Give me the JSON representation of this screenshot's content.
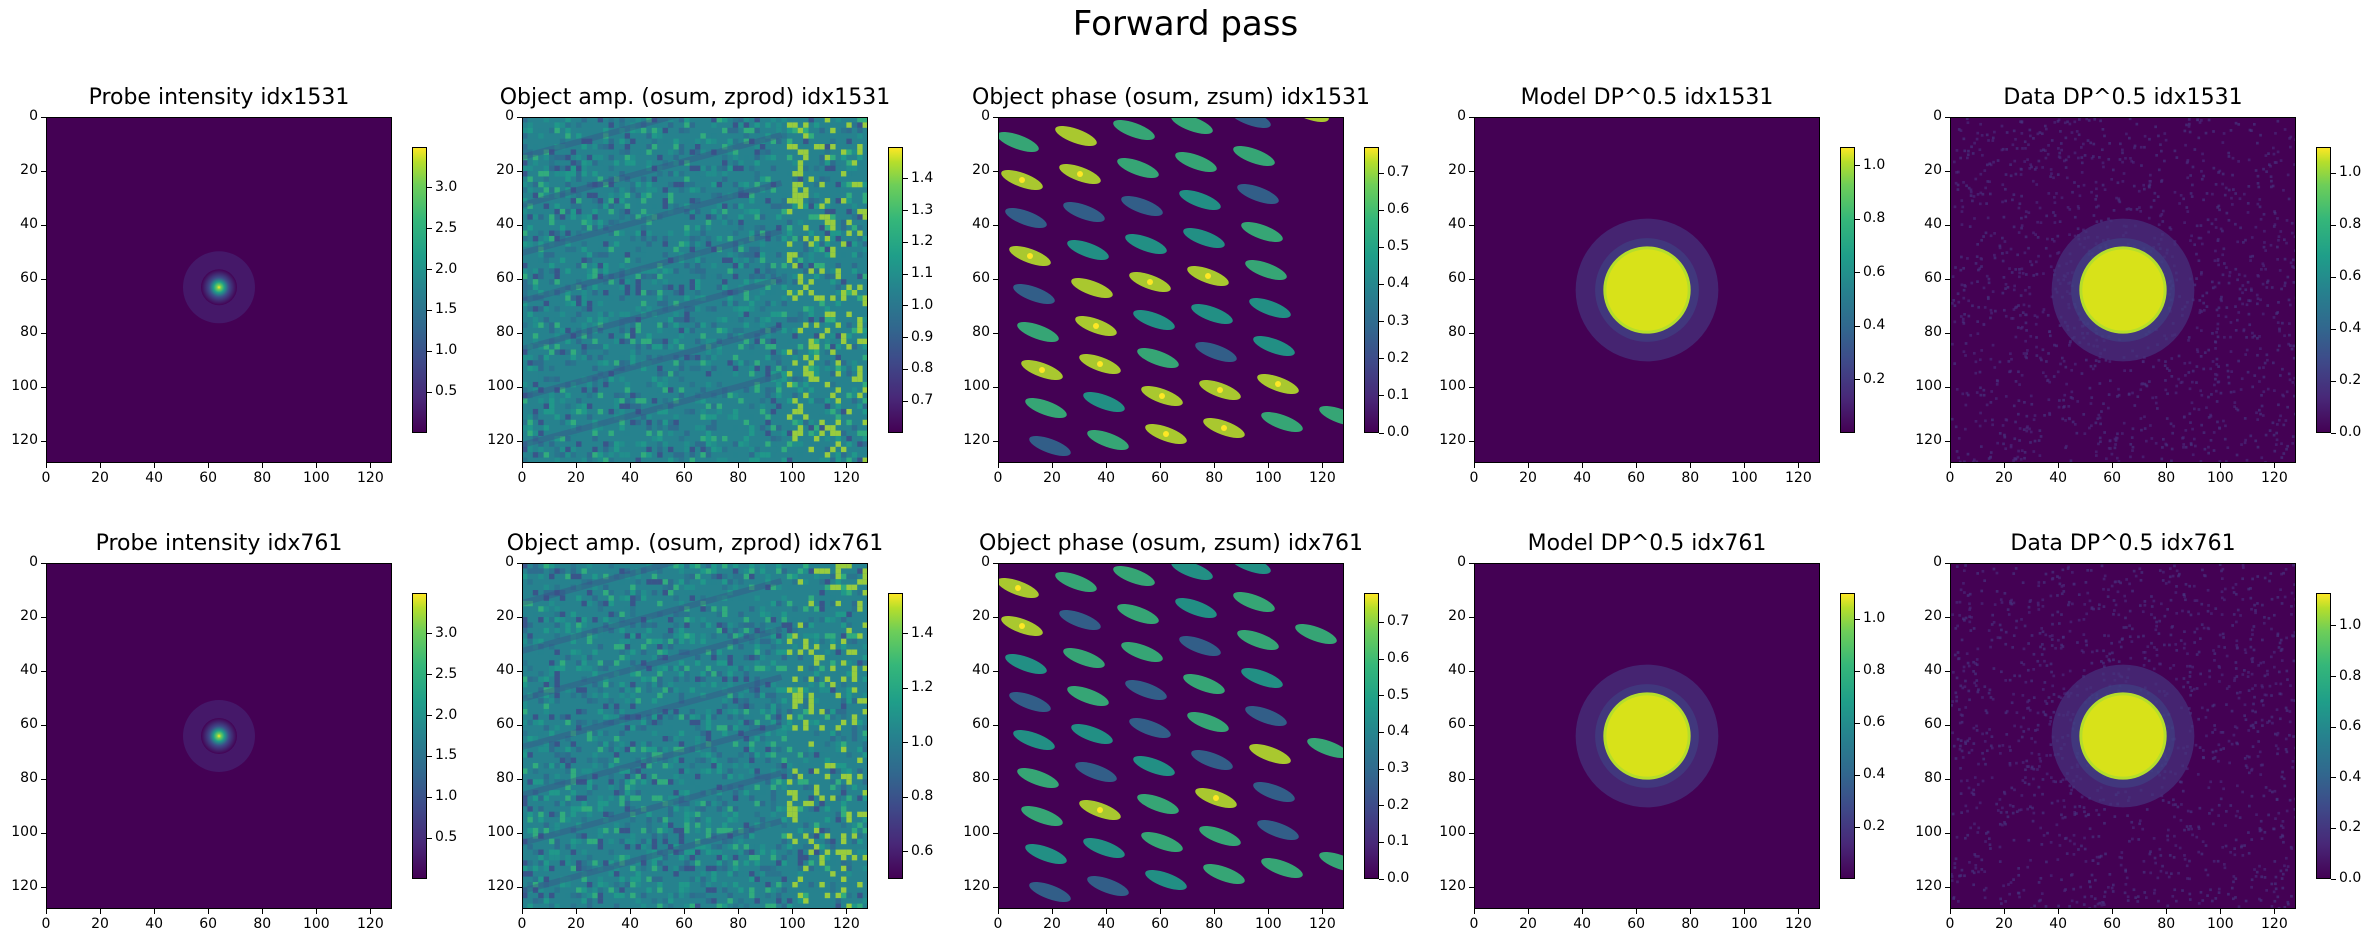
{
  "figure": {
    "suptitle": "Forward pass"
  },
  "colormap": [
    "#440154",
    "#482878",
    "#3e4a89",
    "#31688e",
    "#26828e",
    "#1f9e89",
    "#35b779",
    "#6ece58",
    "#b5de2b",
    "#fde725"
  ],
  "chart_data": [
    {
      "type": "heatmap",
      "kind": "probe",
      "title": "Probe intensity idx1531",
      "xticks": [
        "0",
        "20",
        "40",
        "60",
        "80",
        "100",
        "120"
      ],
      "yticks": [
        "0",
        "20",
        "40",
        "60",
        "80",
        "100",
        "120"
      ],
      "extent": [
        0,
        128
      ],
      "peak_center": [
        64,
        63
      ],
      "vmin": 0.0,
      "vmax": 3.5,
      "colorbar_ticks": [
        "0.5",
        "1.0",
        "1.5",
        "2.0",
        "2.5",
        "3.0"
      ],
      "colorbar_values": [
        0.5,
        1.0,
        1.5,
        2.0,
        2.5,
        3.0
      ]
    },
    {
      "type": "heatmap",
      "kind": "amp",
      "title": "Object amp. (osum, zprod) idx1531",
      "xticks": [
        "0",
        "20",
        "40",
        "60",
        "80",
        "100",
        "120"
      ],
      "yticks": [
        "0",
        "20",
        "40",
        "60",
        "80",
        "100",
        "120"
      ],
      "extent": [
        0,
        128
      ],
      "vmin": 0.6,
      "vmax": 1.5,
      "colorbar_ticks": [
        "0.7",
        "0.8",
        "0.9",
        "1.0",
        "1.1",
        "1.2",
        "1.3",
        "1.4"
      ],
      "colorbar_values": [
        0.7,
        0.8,
        0.9,
        1.0,
        1.1,
        1.2,
        1.3,
        1.4
      ]
    },
    {
      "type": "heatmap",
      "kind": "phase",
      "title": "Object phase (osum, zsum) idx1531",
      "xticks": [
        "0",
        "20",
        "40",
        "60",
        "80",
        "100",
        "120"
      ],
      "yticks": [
        "0",
        "20",
        "40",
        "60",
        "80",
        "100",
        "120"
      ],
      "extent": [
        0,
        128
      ],
      "vmin": 0.0,
      "vmax": 0.77,
      "colorbar_ticks": [
        "0.0",
        "0.1",
        "0.2",
        "0.3",
        "0.4",
        "0.5",
        "0.6",
        "0.7"
      ],
      "colorbar_values": [
        0.0,
        0.1,
        0.2,
        0.3,
        0.4,
        0.5,
        0.6,
        0.7
      ]
    },
    {
      "type": "heatmap",
      "kind": "dp_model",
      "title": "Model DP^0.5 idx1531",
      "xticks": [
        "0",
        "20",
        "40",
        "60",
        "80",
        "100",
        "120"
      ],
      "yticks": [
        "0",
        "20",
        "40",
        "60",
        "80",
        "100",
        "120"
      ],
      "extent": [
        0,
        128
      ],
      "disk_center": [
        64,
        64
      ],
      "disk_radius": 12,
      "vmin": 0.0,
      "vmax": 1.07,
      "colorbar_ticks": [
        "0.2",
        "0.4",
        "0.6",
        "0.8",
        "1.0"
      ],
      "colorbar_values": [
        0.2,
        0.4,
        0.6,
        0.8,
        1.0
      ]
    },
    {
      "type": "heatmap",
      "kind": "dp_data",
      "title": "Data DP^0.5 idx1531",
      "xticks": [
        "0",
        "20",
        "40",
        "60",
        "80",
        "100",
        "120"
      ],
      "yticks": [
        "0",
        "20",
        "40",
        "60",
        "80",
        "100",
        "120"
      ],
      "extent": [
        0,
        128
      ],
      "disk_center": [
        64,
        64
      ],
      "disk_radius": 12,
      "vmin": 0.0,
      "vmax": 1.1,
      "colorbar_ticks": [
        "0.0",
        "0.2",
        "0.4",
        "0.6",
        "0.8",
        "1.0"
      ],
      "colorbar_values": [
        0.0,
        0.2,
        0.4,
        0.6,
        0.8,
        1.0
      ]
    },
    {
      "type": "heatmap",
      "kind": "probe",
      "title": "Probe intensity idx761",
      "xticks": [
        "0",
        "20",
        "40",
        "60",
        "80",
        "100",
        "120"
      ],
      "yticks": [
        "0",
        "20",
        "40",
        "60",
        "80",
        "100",
        "120"
      ],
      "extent": [
        0,
        128
      ],
      "peak_center": [
        64,
        64
      ],
      "vmin": 0.0,
      "vmax": 3.5,
      "colorbar_ticks": [
        "0.5",
        "1.0",
        "1.5",
        "2.0",
        "2.5",
        "3.0"
      ],
      "colorbar_values": [
        0.5,
        1.0,
        1.5,
        2.0,
        2.5,
        3.0
      ]
    },
    {
      "type": "heatmap",
      "kind": "amp",
      "title": "Object amp. (osum, zprod) idx761",
      "xticks": [
        "0",
        "20",
        "40",
        "60",
        "80",
        "100",
        "120"
      ],
      "yticks": [
        "0",
        "20",
        "40",
        "60",
        "80",
        "100",
        "120"
      ],
      "extent": [
        0,
        128
      ],
      "vmin": 0.5,
      "vmax": 1.55,
      "colorbar_ticks": [
        "0.6",
        "0.8",
        "1.0",
        "1.2",
        "1.4"
      ],
      "colorbar_values": [
        0.6,
        0.8,
        1.0,
        1.2,
        1.4
      ]
    },
    {
      "type": "heatmap",
      "kind": "phase",
      "title": "Object phase (osum, zsum) idx761",
      "xticks": [
        "0",
        "20",
        "40",
        "60",
        "80",
        "100",
        "120"
      ],
      "yticks": [
        "0",
        "20",
        "40",
        "60",
        "80",
        "100",
        "120"
      ],
      "extent": [
        0,
        128
      ],
      "vmin": 0.0,
      "vmax": 0.78,
      "colorbar_ticks": [
        "0.0",
        "0.1",
        "0.2",
        "0.3",
        "0.4",
        "0.5",
        "0.6",
        "0.7"
      ],
      "colorbar_values": [
        0.0,
        0.1,
        0.2,
        0.3,
        0.4,
        0.5,
        0.6,
        0.7
      ]
    },
    {
      "type": "heatmap",
      "kind": "dp_model",
      "title": "Model DP^0.5 idx761",
      "xticks": [
        "0",
        "20",
        "40",
        "60",
        "80",
        "100",
        "120"
      ],
      "yticks": [
        "0",
        "20",
        "40",
        "60",
        "80",
        "100",
        "120"
      ],
      "extent": [
        0,
        128
      ],
      "disk_center": [
        64,
        64
      ],
      "disk_radius": 12,
      "vmin": 0.0,
      "vmax": 1.1,
      "colorbar_ticks": [
        "0.2",
        "0.4",
        "0.6",
        "0.8",
        "1.0"
      ],
      "colorbar_values": [
        0.2,
        0.4,
        0.6,
        0.8,
        1.0
      ]
    },
    {
      "type": "heatmap",
      "kind": "dp_data",
      "title": "Data DP^0.5 idx761",
      "xticks": [
        "0",
        "20",
        "40",
        "60",
        "80",
        "100",
        "120"
      ],
      "yticks": [
        "0",
        "20",
        "40",
        "60",
        "80",
        "100",
        "120"
      ],
      "extent": [
        0,
        128
      ],
      "disk_center": [
        64,
        64
      ],
      "disk_radius": 12,
      "vmin": 0.0,
      "vmax": 1.13,
      "colorbar_ticks": [
        "0.0",
        "0.2",
        "0.4",
        "0.6",
        "0.8",
        "1.0"
      ],
      "colorbar_values": [
        0.0,
        0.2,
        0.4,
        0.6,
        0.8,
        1.0
      ]
    }
  ]
}
